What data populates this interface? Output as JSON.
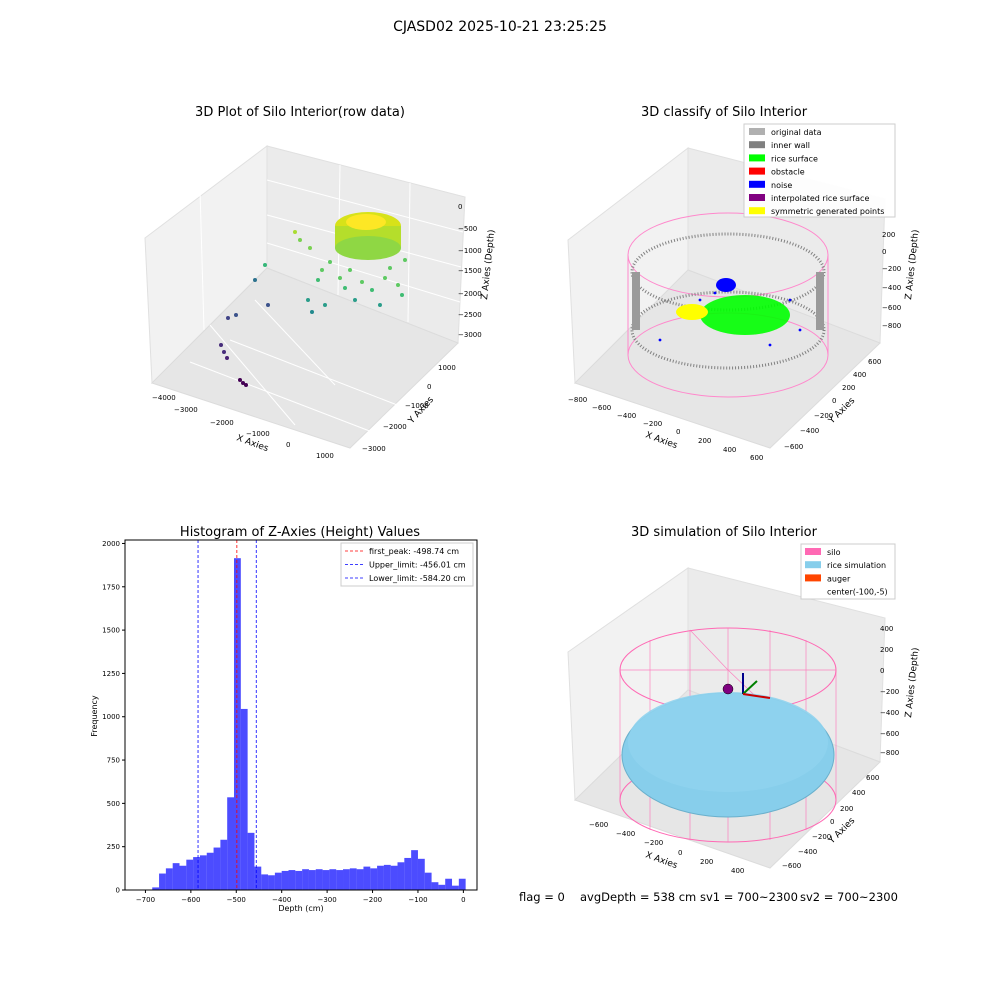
{
  "figure": {
    "suptitle": "CJASD02 2025-10-21 23:25:25",
    "footer": {
      "flag": "flag = 0",
      "avgDepth": "avgDepth = 538 cm",
      "sv1": "sv1 = 700~2300",
      "sv2": "sv2 = 700~2300"
    }
  },
  "chart_data": [
    {
      "type": "scatter",
      "title": "3D Plot of Silo Interior(row data)",
      "xlabel": "X Axies",
      "ylabel": "Y Axies",
      "zlabel": "Z Axies (Depth)",
      "x_ticks": [
        "−4000",
        "−3000",
        "−2000",
        "−1000",
        "0",
        "1000"
      ],
      "y_ticks": [
        "−3000",
        "−2000",
        "−1000",
        "0",
        "1000"
      ],
      "z_ticks": [
        "−3000",
        "−2500",
        "−2000",
        "−1500",
        "−1000",
        "−500",
        "0"
      ],
      "colormap": "viridis",
      "grid": true
    },
    {
      "type": "scatter",
      "title": "3D classify of Silo Interior",
      "xlabel": "X Axies",
      "ylabel": "Y Axies",
      "zlabel": "Z Axies (Depth)",
      "x_ticks": [
        "−800",
        "−600",
        "−400",
        "−200",
        "0",
        "200",
        "400",
        "600"
      ],
      "y_ticks": [
        "−600",
        "−400",
        "−200",
        "0",
        "200",
        "400",
        "600"
      ],
      "z_ticks": [
        "−800",
        "−600",
        "−400",
        "−200",
        "0",
        "200"
      ],
      "legend_position": "top-right",
      "legend": [
        {
          "label": "original data",
          "color": "#b0b0b0"
        },
        {
          "label": "inner wall",
          "color": "#808080"
        },
        {
          "label": "rice surface",
          "color": "#00ff00"
        },
        {
          "label": "obstacle",
          "color": "#ff0000"
        },
        {
          "label": "noise",
          "color": "#0000ff"
        },
        {
          "label": "interpolated rice surface",
          "color": "#800080"
        },
        {
          "label": "symmetric generated points",
          "color": "#ffff00"
        }
      ],
      "grid": true
    },
    {
      "type": "bar",
      "title": "Histogram of Z-Axies (Height) Values",
      "xlabel": "Depth (cm)",
      "ylabel": "Frequency",
      "xlim": [
        -745,
        30
      ],
      "ylim": [
        0,
        2020
      ],
      "x_ticks": [
        -700,
        -600,
        -500,
        -400,
        -300,
        -200,
        -100,
        0
      ],
      "x_tick_labels": [
        "−700",
        "−600",
        "−500",
        "−400",
        "−300",
        "−200",
        "−100",
        "0"
      ],
      "y_ticks": [
        0,
        250,
        500,
        750,
        1000,
        1250,
        1500,
        1750,
        2000
      ],
      "bar_color": "#0000ff",
      "bin_width": 15,
      "bins": [
        {
          "x0": -685,
          "count": 15
        },
        {
          "x0": -670,
          "count": 95
        },
        {
          "x0": -655,
          "count": 125
        },
        {
          "x0": -640,
          "count": 155
        },
        {
          "x0": -625,
          "count": 140
        },
        {
          "x0": -610,
          "count": 175
        },
        {
          "x0": -595,
          "count": 190
        },
        {
          "x0": -580,
          "count": 200
        },
        {
          "x0": -565,
          "count": 215
        },
        {
          "x0": -550,
          "count": 245
        },
        {
          "x0": -535,
          "count": 290
        },
        {
          "x0": -520,
          "count": 535
        },
        {
          "x0": -505,
          "count": 1915
        },
        {
          "x0": -490,
          "count": 1045
        },
        {
          "x0": -475,
          "count": 330
        },
        {
          "x0": -460,
          "count": 135
        },
        {
          "x0": -445,
          "count": 90
        },
        {
          "x0": -430,
          "count": 85
        },
        {
          "x0": -415,
          "count": 100
        },
        {
          "x0": -400,
          "count": 110
        },
        {
          "x0": -385,
          "count": 115
        },
        {
          "x0": -370,
          "count": 110
        },
        {
          "x0": -355,
          "count": 120
        },
        {
          "x0": -340,
          "count": 115
        },
        {
          "x0": -325,
          "count": 120
        },
        {
          "x0": -310,
          "count": 115
        },
        {
          "x0": -295,
          "count": 120
        },
        {
          "x0": -280,
          "count": 115
        },
        {
          "x0": -265,
          "count": 120
        },
        {
          "x0": -250,
          "count": 125
        },
        {
          "x0": -235,
          "count": 120
        },
        {
          "x0": -220,
          "count": 135
        },
        {
          "x0": -205,
          "count": 125
        },
        {
          "x0": -190,
          "count": 140
        },
        {
          "x0": -175,
          "count": 145
        },
        {
          "x0": -160,
          "count": 140
        },
        {
          "x0": -145,
          "count": 160
        },
        {
          "x0": -130,
          "count": 185
        },
        {
          "x0": -115,
          "count": 230
        },
        {
          "x0": -100,
          "count": 180
        },
        {
          "x0": -85,
          "count": 100
        },
        {
          "x0": -70,
          "count": 45
        },
        {
          "x0": -55,
          "count": 30
        },
        {
          "x0": -40,
          "count": 65
        },
        {
          "x0": -25,
          "count": 25
        },
        {
          "x0": -10,
          "count": 65
        }
      ],
      "vlines": [
        {
          "x": -498.74,
          "color": "#ff0000",
          "label": "first_peak: -498.74 cm"
        },
        {
          "x": -456.01,
          "color": "#0000ff",
          "label": "Upper_limit: -456.01 cm"
        },
        {
          "x": -584.2,
          "color": "#0000ff",
          "label": "Lower_limit: -584.20 cm"
        }
      ],
      "legend_position": "top-right"
    },
    {
      "type": "scatter",
      "title": "3D simulation of Silo Interior",
      "xlabel": "X Axies",
      "ylabel": "Y Axies",
      "zlabel": "Z Axies (Depth)",
      "x_ticks": [
        "−600",
        "−400",
        "−200",
        "0",
        "200",
        "400"
      ],
      "y_ticks": [
        "−600",
        "−400",
        "−200",
        "0",
        "200",
        "400",
        "600"
      ],
      "z_ticks": [
        "−800",
        "−600",
        "−400",
        "−200",
        "0",
        "200",
        "400"
      ],
      "legend_position": "top-right",
      "legend": [
        {
          "label": "silo",
          "color": "#ff69b4"
        },
        {
          "label": "rice simulation",
          "color": "#87ceeb"
        },
        {
          "label": "auger",
          "color": "#ff4500"
        },
        {
          "label": "center(-100,-5)",
          "color": "none"
        }
      ],
      "grid": true
    }
  ]
}
